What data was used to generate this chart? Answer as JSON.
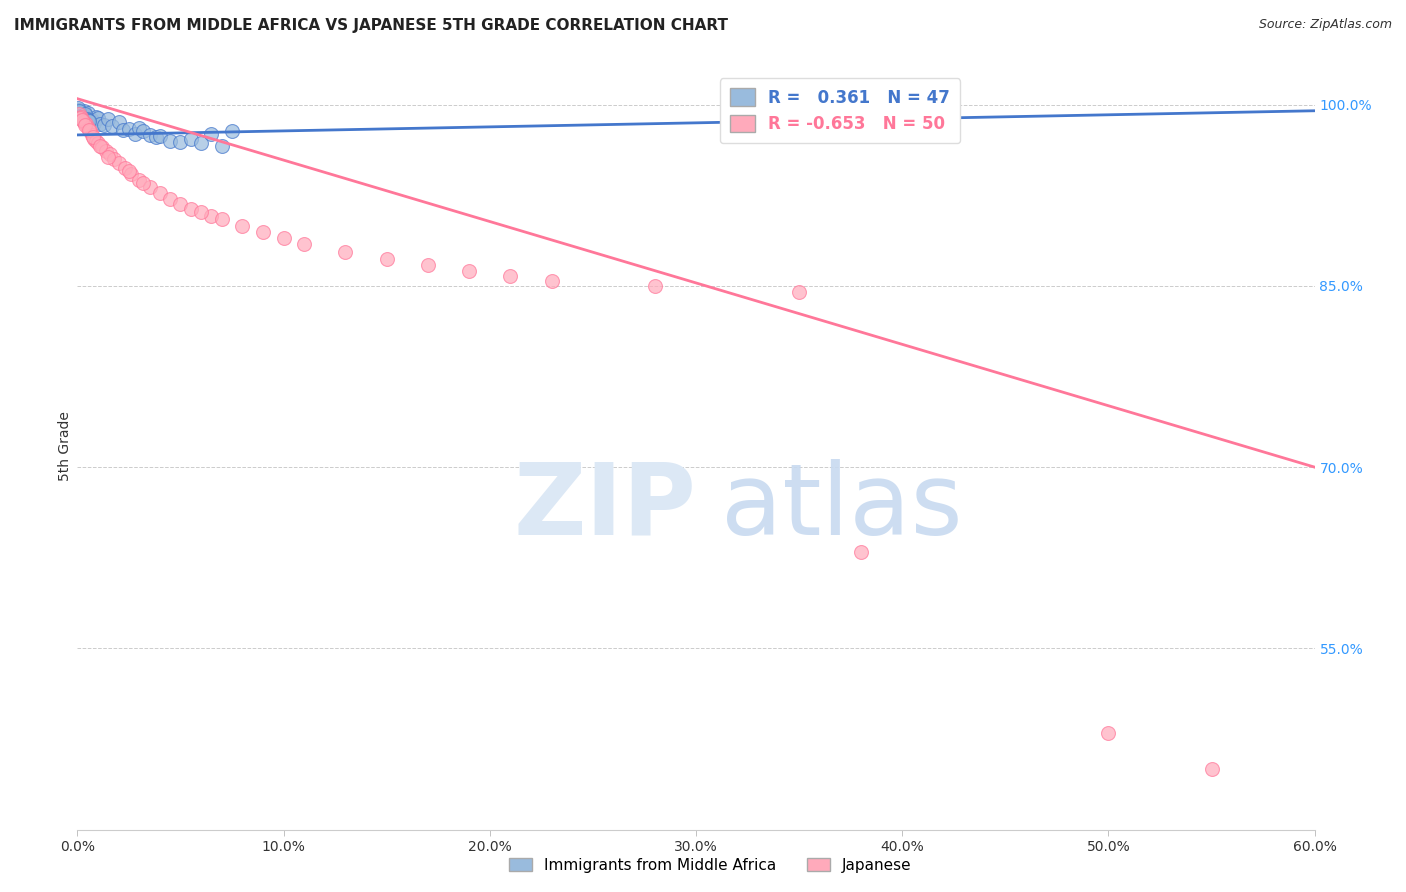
{
  "title": "IMMIGRANTS FROM MIDDLE AFRICA VS JAPANESE 5TH GRADE CORRELATION CHART",
  "source": "Source: ZipAtlas.com",
  "ylabel": "5th Grade",
  "xlim": [
    0.0,
    60.0
  ],
  "ylim": [
    40.0,
    103.5
  ],
  "yticks": [
    55.0,
    70.0,
    85.0,
    100.0
  ],
  "xticks": [
    0.0,
    10.0,
    20.0,
    30.0,
    40.0,
    50.0,
    60.0
  ],
  "blue_R": 0.361,
  "blue_N": 47,
  "pink_R": -0.653,
  "pink_N": 50,
  "blue_color": "#99BBDD",
  "pink_color": "#FFAABB",
  "blue_line_color": "#4477CC",
  "pink_line_color": "#FF7799",
  "blue_scatter": [
    [
      0.1,
      99.6
    ],
    [
      0.15,
      99.4
    ],
    [
      0.2,
      99.3
    ],
    [
      0.25,
      99.2
    ],
    [
      0.3,
      99.5
    ],
    [
      0.35,
      99.0
    ],
    [
      0.4,
      99.1
    ],
    [
      0.45,
      98.9
    ],
    [
      0.5,
      99.3
    ],
    [
      0.55,
      98.8
    ],
    [
      0.6,
      98.6
    ],
    [
      0.7,
      98.7
    ],
    [
      0.8,
      98.5
    ],
    [
      0.9,
      99.0
    ],
    [
      1.0,
      98.9
    ],
    [
      1.1,
      98.4
    ],
    [
      1.3,
      98.3
    ],
    [
      1.5,
      98.8
    ],
    [
      1.7,
      98.2
    ],
    [
      2.0,
      98.6
    ],
    [
      2.2,
      97.9
    ],
    [
      2.5,
      98.0
    ],
    [
      2.8,
      97.6
    ],
    [
      3.0,
      98.1
    ],
    [
      3.2,
      97.8
    ],
    [
      3.5,
      97.5
    ],
    [
      3.8,
      97.3
    ],
    [
      4.0,
      97.4
    ],
    [
      4.5,
      97.0
    ],
    [
      5.0,
      96.9
    ],
    [
      5.5,
      97.2
    ],
    [
      6.0,
      96.8
    ],
    [
      6.5,
      97.6
    ],
    [
      7.0,
      96.6
    ],
    [
      7.5,
      97.8
    ],
    [
      0.05,
      99.7
    ],
    [
      0.08,
      99.5
    ],
    [
      0.12,
      99.1
    ],
    [
      0.18,
      98.95
    ],
    [
      0.22,
      99.0
    ],
    [
      0.28,
      98.7
    ],
    [
      0.32,
      98.8
    ],
    [
      0.38,
      99.2
    ],
    [
      0.42,
      98.6
    ],
    [
      0.48,
      98.85
    ],
    [
      0.52,
      98.75
    ],
    [
      0.58,
      98.65
    ]
  ],
  "pink_scatter": [
    [
      0.1,
      99.2
    ],
    [
      0.2,
      99.0
    ],
    [
      0.3,
      98.6
    ],
    [
      0.4,
      98.4
    ],
    [
      0.5,
      98.1
    ],
    [
      0.6,
      97.8
    ],
    [
      0.7,
      97.5
    ],
    [
      0.8,
      97.2
    ],
    [
      0.9,
      97.0
    ],
    [
      1.0,
      96.8
    ],
    [
      1.2,
      96.5
    ],
    [
      1.4,
      96.2
    ],
    [
      1.6,
      95.9
    ],
    [
      1.8,
      95.5
    ],
    [
      2.0,
      95.2
    ],
    [
      2.3,
      94.8
    ],
    [
      2.6,
      94.3
    ],
    [
      3.0,
      93.8
    ],
    [
      3.5,
      93.2
    ],
    [
      4.0,
      92.7
    ],
    [
      4.5,
      92.2
    ],
    [
      5.0,
      91.8
    ],
    [
      5.5,
      91.4
    ],
    [
      6.5,
      90.8
    ],
    [
      7.0,
      90.5
    ],
    [
      8.0,
      90.0
    ],
    [
      9.0,
      89.5
    ],
    [
      10.0,
      89.0
    ],
    [
      11.0,
      88.5
    ],
    [
      13.0,
      87.8
    ],
    [
      15.0,
      87.2
    ],
    [
      17.0,
      86.7
    ],
    [
      19.0,
      86.2
    ],
    [
      21.0,
      85.8
    ],
    [
      23.0,
      85.4
    ],
    [
      0.15,
      98.9
    ],
    [
      0.25,
      98.7
    ],
    [
      0.35,
      98.3
    ],
    [
      0.55,
      97.9
    ],
    [
      0.75,
      97.3
    ],
    [
      1.1,
      96.6
    ],
    [
      1.5,
      95.7
    ],
    [
      2.5,
      94.5
    ],
    [
      3.2,
      93.5
    ],
    [
      6.0,
      91.1
    ],
    [
      28.0,
      85.0
    ],
    [
      35.0,
      84.5
    ],
    [
      38.0,
      63.0
    ],
    [
      50.0,
      48.0
    ],
    [
      55.0,
      45.0
    ]
  ],
  "blue_trendline": [
    [
      0.0,
      97.5
    ],
    [
      60.0,
      99.5
    ]
  ],
  "pink_trendline": [
    [
      0.0,
      100.5
    ],
    [
      60.0,
      70.0
    ]
  ]
}
